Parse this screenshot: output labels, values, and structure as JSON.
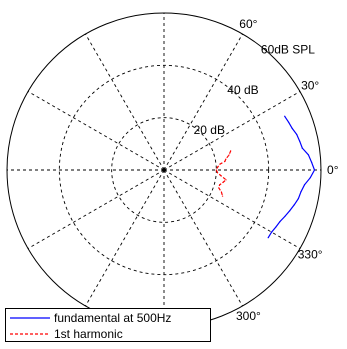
{
  "chart_data": {
    "type": "line",
    "coordinate_system": "polar",
    "angle_unit": "degrees",
    "radius_unit": "dB",
    "radial_range": [
      0,
      60
    ],
    "ring_values": [
      20,
      40,
      60
    ],
    "ring_labels": [
      "20 dB",
      "40 dB",
      "60dB SPL"
    ],
    "angle_ticks": [
      0,
      30,
      60,
      90,
      120,
      150,
      180,
      210,
      240,
      270,
      300,
      330
    ],
    "angle_labels": [
      "0°",
      "30°",
      "60°",
      "300°",
      "330°"
    ],
    "grid": true,
    "legend_position": "bottom-left",
    "series": [
      {
        "name": "fundamental at 500Hz",
        "color": "#0000ff",
        "style": "solid",
        "points": [
          {
            "angle": 24,
            "r": 50.5
          },
          {
            "angle": 21,
            "r": 51.0
          },
          {
            "angle": 18,
            "r": 51.5
          },
          {
            "angle": 15,
            "r": 52.5
          },
          {
            "angle": 12,
            "r": 53.0
          },
          {
            "angle": 9,
            "r": 53.5
          },
          {
            "angle": 6,
            "r": 55.5
          },
          {
            "angle": 3,
            "r": 56.5
          },
          {
            "angle": 0,
            "r": 57.5
          },
          {
            "angle": -3,
            "r": 56.0
          },
          {
            "angle": -6,
            "r": 54.0
          },
          {
            "angle": -9,
            "r": 53.0
          },
          {
            "angle": -12,
            "r": 52.5
          },
          {
            "angle": -15,
            "r": 51.5
          },
          {
            "angle": -18,
            "r": 50.5
          },
          {
            "angle": -21,
            "r": 49.5
          },
          {
            "angle": -24,
            "r": 48.5
          },
          {
            "angle": -27,
            "r": 48.0
          },
          {
            "angle": -30,
            "r": 47.5
          },
          {
            "angle": -33,
            "r": 47.5
          }
        ]
      },
      {
        "name": "1st harmonic",
        "color": "#ff0000",
        "style": "dashed",
        "points": [
          {
            "angle": 16,
            "r": 26.5
          },
          {
            "angle": 13,
            "r": 25.5
          },
          {
            "angle": 10,
            "r": 24.0
          },
          {
            "angle": 8,
            "r": 23.5
          },
          {
            "angle": 6,
            "r": 21.5
          },
          {
            "angle": 3,
            "r": 20.5
          },
          {
            "angle": 0,
            "r": 20.0
          },
          {
            "angle": -3,
            "r": 20.5
          },
          {
            "angle": -6,
            "r": 22.0
          },
          {
            "angle": -9,
            "r": 24.0
          },
          {
            "angle": -12,
            "r": 23.0
          },
          {
            "angle": -15,
            "r": 22.0
          },
          {
            "angle": -18,
            "r": 22.0
          },
          {
            "angle": -21,
            "r": 23.5
          },
          {
            "angle": -24,
            "r": 24.5
          }
        ]
      }
    ]
  }
}
